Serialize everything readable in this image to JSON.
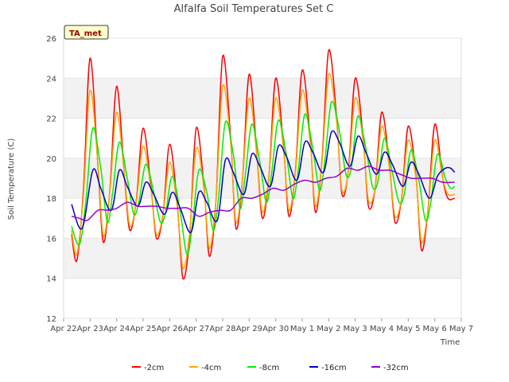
{
  "chart_data": {
    "type": "line",
    "title": "Alfalfa Soil Temperatures Set C",
    "xlabel": "Time",
    "ylabel": "Soil Temperature (C)",
    "badge": "TA_met",
    "ylim": [
      12,
      26
    ],
    "xlim": [
      0,
      15
    ],
    "y_ticks": [
      12,
      14,
      16,
      18,
      20,
      22,
      24,
      26
    ],
    "x_ticks": [
      "Apr 22",
      "Apr 23",
      "Apr 24",
      "Apr 25",
      "Apr 26",
      "Apr 27",
      "Apr 28",
      "Apr 29",
      "Apr 30",
      "May 1",
      "May 2",
      "May 3",
      "May 4",
      "May 5",
      "May 6",
      "May 7"
    ],
    "grid": true,
    "legend_position": "bottom",
    "series": [
      {
        "name": "-2cm",
        "color": "#ff0000",
        "x": [
          0.3,
          0.5,
          0.75,
          1.0,
          1.3,
          1.5,
          1.75,
          2.0,
          2.3,
          2.5,
          2.75,
          3.0,
          3.3,
          3.5,
          3.75,
          4.0,
          4.3,
          4.5,
          4.75,
          5.0,
          5.3,
          5.5,
          5.75,
          6.0,
          6.3,
          6.5,
          6.75,
          7.0,
          7.3,
          7.5,
          7.75,
          8.0,
          8.3,
          8.5,
          8.75,
          9.0,
          9.3,
          9.5,
          9.75,
          10.0,
          10.3,
          10.5,
          10.75,
          11.0,
          11.3,
          11.5,
          11.75,
          12.0,
          12.3,
          12.5,
          12.75,
          13.0,
          13.3,
          13.5,
          13.75,
          14.0,
          14.3,
          14.5,
          14.75
        ],
        "y": [
          16.2,
          14.9,
          18.5,
          25.0,
          19.5,
          15.8,
          18.5,
          23.6,
          19.0,
          16.4,
          18.0,
          21.5,
          18.5,
          16.0,
          17.2,
          20.7,
          17.5,
          14.0,
          16.0,
          21.5,
          18.5,
          15.1,
          18.0,
          25.1,
          21.0,
          16.5,
          19.0,
          24.2,
          20.0,
          17.0,
          19.2,
          24.0,
          20.5,
          17.1,
          19.5,
          24.4,
          21.0,
          17.3,
          20.0,
          25.4,
          22.0,
          18.2,
          19.5,
          24.0,
          21.0,
          17.6,
          18.5,
          22.3,
          19.5,
          16.8,
          18.0,
          21.6,
          19.0,
          15.4,
          17.5,
          21.7,
          19.0,
          18.0,
          18.0
        ]
      },
      {
        "name": "-4cm",
        "color": "#ffa500",
        "x": [
          0.3,
          0.5,
          0.75,
          1.0,
          1.3,
          1.5,
          1.75,
          2.0,
          2.3,
          2.5,
          2.75,
          3.0,
          3.3,
          3.5,
          3.75,
          4.0,
          4.3,
          4.5,
          4.75,
          5.0,
          5.3,
          5.5,
          5.75,
          6.0,
          6.3,
          6.5,
          6.75,
          7.0,
          7.3,
          7.5,
          7.75,
          8.0,
          8.3,
          8.5,
          8.75,
          9.0,
          9.3,
          9.5,
          9.75,
          10.0,
          10.3,
          10.5,
          10.75,
          11.0,
          11.3,
          11.5,
          11.75,
          12.0,
          12.3,
          12.5,
          12.75,
          13.0,
          13.3,
          13.5,
          13.75,
          14.0,
          14.3,
          14.5,
          14.75
        ],
        "y": [
          16.4,
          15.2,
          18.2,
          23.4,
          19.6,
          16.1,
          18.4,
          22.3,
          19.1,
          16.6,
          17.9,
          20.6,
          18.4,
          16.2,
          17.2,
          19.8,
          17.4,
          14.5,
          16.2,
          20.5,
          18.4,
          15.5,
          18.0,
          23.6,
          20.8,
          16.8,
          19.0,
          23.0,
          20.0,
          17.3,
          19.2,
          23.0,
          20.4,
          17.4,
          19.4,
          23.4,
          20.8,
          17.6,
          19.9,
          24.2,
          21.8,
          18.4,
          19.4,
          23.0,
          20.8,
          17.9,
          18.5,
          21.6,
          19.4,
          17.1,
          18.0,
          20.9,
          18.9,
          15.8,
          17.5,
          20.9,
          19.0,
          18.2,
          18.2
        ]
      },
      {
        "name": "-8cm",
        "color": "#00ee00",
        "x": [
          0.3,
          0.6,
          0.85,
          1.1,
          1.4,
          1.65,
          1.85,
          2.1,
          2.4,
          2.65,
          2.85,
          3.1,
          3.4,
          3.65,
          3.85,
          4.1,
          4.4,
          4.65,
          4.85,
          5.1,
          5.4,
          5.65,
          5.85,
          6.1,
          6.4,
          6.65,
          6.85,
          7.1,
          7.4,
          7.65,
          7.85,
          8.1,
          8.4,
          8.65,
          8.85,
          9.1,
          9.4,
          9.65,
          9.85,
          10.1,
          10.4,
          10.65,
          10.85,
          11.1,
          11.4,
          11.65,
          11.85,
          12.1,
          12.4,
          12.65,
          12.85,
          13.1,
          13.4,
          13.65,
          13.85,
          14.1,
          14.4,
          14.6,
          14.75
        ],
        "y": [
          16.6,
          15.7,
          18.0,
          21.5,
          19.5,
          16.8,
          18.3,
          20.8,
          19.0,
          17.2,
          17.9,
          19.7,
          18.3,
          16.8,
          17.3,
          19.1,
          17.3,
          15.2,
          16.6,
          19.4,
          18.3,
          16.4,
          18.1,
          21.8,
          20.2,
          17.5,
          19.1,
          21.7,
          19.8,
          17.8,
          19.3,
          21.9,
          20.2,
          18.0,
          19.4,
          22.2,
          20.5,
          18.4,
          19.8,
          22.8,
          21.4,
          19.2,
          19.5,
          22.1,
          20.5,
          18.6,
          18.8,
          21.0,
          19.3,
          17.8,
          18.2,
          20.4,
          18.9,
          16.9,
          17.8,
          20.2,
          19.0,
          18.5,
          18.6
        ]
      },
      {
        "name": "-16cm",
        "color": "#0000cc",
        "x": [
          0.3,
          0.7,
          1.1,
          1.4,
          1.8,
          2.1,
          2.4,
          2.8,
          3.1,
          3.4,
          3.8,
          4.1,
          4.4,
          4.8,
          5.1,
          5.4,
          5.8,
          6.1,
          6.4,
          6.8,
          7.1,
          7.4,
          7.8,
          8.1,
          8.4,
          8.8,
          9.1,
          9.4,
          9.8,
          10.1,
          10.4,
          10.8,
          11.1,
          11.4,
          11.8,
          12.1,
          12.4,
          12.8,
          13.1,
          13.4,
          13.8,
          14.1,
          14.4,
          14.6,
          14.75
        ],
        "y": [
          17.7,
          16.5,
          19.4,
          18.5,
          17.4,
          19.4,
          18.6,
          17.6,
          18.8,
          18.2,
          17.2,
          18.3,
          17.5,
          16.3,
          18.3,
          17.8,
          16.9,
          19.9,
          19.3,
          18.2,
          20.2,
          19.6,
          18.6,
          20.6,
          20.1,
          18.9,
          20.8,
          20.3,
          19.3,
          21.3,
          20.8,
          19.6,
          21.1,
          20.3,
          19.2,
          20.3,
          19.7,
          18.6,
          19.8,
          19.2,
          18.0,
          19.1,
          19.5,
          19.5,
          19.3
        ]
      },
      {
        "name": "-32cm",
        "color": "#9900cc",
        "x": [
          0.3,
          0.6,
          0.9,
          1.3,
          1.7,
          2.0,
          2.4,
          2.8,
          3.1,
          3.5,
          3.9,
          4.3,
          4.7,
          5.1,
          5.5,
          5.9,
          6.3,
          6.7,
          7.1,
          7.5,
          7.9,
          8.3,
          8.7,
          9.1,
          9.5,
          9.9,
          10.3,
          10.7,
          11.1,
          11.5,
          11.9,
          12.3,
          12.7,
          13.1,
          13.5,
          13.9,
          14.3,
          14.75
        ],
        "y": [
          17.1,
          17.0,
          16.9,
          17.4,
          17.4,
          17.5,
          17.8,
          17.6,
          17.6,
          17.6,
          17.5,
          17.5,
          17.5,
          17.1,
          17.3,
          17.4,
          17.4,
          18.0,
          18.0,
          18.2,
          18.5,
          18.4,
          18.7,
          18.9,
          18.8,
          19.0,
          19.1,
          19.5,
          19.4,
          19.6,
          19.4,
          19.4,
          19.2,
          19.0,
          19.0,
          19.0,
          18.8,
          18.8
        ]
      }
    ]
  }
}
